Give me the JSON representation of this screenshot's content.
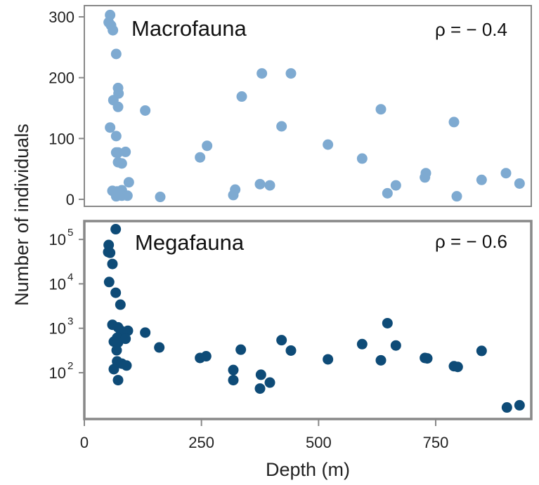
{
  "chart_data": [
    {
      "type": "scatter",
      "title": "Macrofauna",
      "annotation": "ρ = − 0.4",
      "ylabel": "Number of individuals",
      "xlabel": "Depth (m)",
      "xlim": [
        0,
        940
      ],
      "ylim": [
        0,
        310
      ],
      "yscale": "linear",
      "yticks": [
        0,
        100,
        200,
        300
      ],
      "ytick_labels": [
        "0",
        "100",
        "200",
        "300"
      ],
      "color": "#7eaad1",
      "series": [
        {
          "points": [
            [
              55,
              303
            ],
            [
              52,
              291
            ],
            [
              57,
              286
            ],
            [
              61,
              278
            ],
            [
              68,
              239
            ],
            [
              72,
              183
            ],
            [
              73,
              174
            ],
            [
              62,
              163
            ],
            [
              72,
              152
            ],
            [
              130,
              146
            ],
            [
              55,
              118
            ],
            [
              68,
              104
            ],
            [
              88,
              78
            ],
            [
              68,
              77
            ],
            [
              72,
              77
            ],
            [
              72,
              61
            ],
            [
              80,
              59
            ],
            [
              95,
              28
            ],
            [
              60,
              14
            ],
            [
              70,
              13
            ],
            [
              80,
              15
            ],
            [
              68,
              5
            ],
            [
              80,
              6
            ],
            [
              92,
              6
            ],
            [
              162,
              4
            ],
            [
              262,
              88
            ],
            [
              247,
              69
            ],
            [
              336,
              169
            ],
            [
              379,
              207
            ],
            [
              441,
              207
            ],
            [
              421,
              120
            ],
            [
              322,
              16
            ],
            [
              318,
              7
            ],
            [
              375,
              25
            ],
            [
              396,
              23
            ],
            [
              520,
              90
            ],
            [
              593,
              67
            ],
            [
              633,
              148
            ],
            [
              789,
              127
            ],
            [
              727,
              36
            ],
            [
              729,
              43
            ],
            [
              647,
              10
            ],
            [
              665,
              23
            ],
            [
              795,
              5
            ],
            [
              848,
              32
            ],
            [
              900,
              43
            ],
            [
              929,
              26
            ]
          ]
        }
      ]
    },
    {
      "type": "scatter",
      "title": "Megafauna",
      "annotation": "ρ = − 0.6",
      "ylabel": "Number of individuals",
      "xlabel": "Depth (m)",
      "xlim": [
        0,
        940
      ],
      "ylim": [
        10,
        200000
      ],
      "yscale": "log",
      "yticks": [
        100,
        1000,
        10000,
        100000
      ],
      "ytick_labels": [
        [
          "10",
          "2"
        ],
        [
          "10",
          "3"
        ],
        [
          "10",
          "4"
        ],
        [
          "10",
          "5"
        ]
      ],
      "xticks": [
        0,
        250,
        500,
        750
      ],
      "xtick_labels": [
        "0",
        "250",
        "500",
        "750"
      ],
      "color": "#0e4b77",
      "series": [
        {
          "points": [
            [
              67,
              170000
            ],
            [
              52,
              75000
            ],
            [
              51,
              52000
            ],
            [
              55,
              50000
            ],
            [
              60,
              28000
            ],
            [
              53,
              11000
            ],
            [
              67,
              6300
            ],
            [
              77,
              3400
            ],
            [
              60,
              1200
            ],
            [
              72,
              1050
            ],
            [
              78,
              880
            ],
            [
              93,
              880
            ],
            [
              130,
              800
            ],
            [
              70,
              610
            ],
            [
              88,
              580
            ],
            [
              63,
              500
            ],
            [
              72,
              480
            ],
            [
              69,
              320
            ],
            [
              160,
              370
            ],
            [
              70,
              180
            ],
            [
              80,
              160
            ],
            [
              90,
              145
            ],
            [
              63,
              120
            ],
            [
              72,
              68
            ],
            [
              247,
              215
            ],
            [
              260,
              235
            ],
            [
              334,
              330
            ],
            [
              318,
              115
            ],
            [
              318,
              68
            ],
            [
              377,
              90
            ],
            [
              375,
              44
            ],
            [
              396,
              60
            ],
            [
              421,
              540
            ],
            [
              441,
              315
            ],
            [
              520,
              200
            ],
            [
              593,
              440
            ],
            [
              633,
              190
            ],
            [
              647,
              1300
            ],
            [
              665,
              410
            ],
            [
              727,
              215
            ],
            [
              732,
              210
            ],
            [
              789,
              140
            ],
            [
              797,
              135
            ],
            [
              848,
              310
            ],
            [
              902,
              16.5
            ],
            [
              929,
              18.5
            ]
          ]
        }
      ]
    }
  ],
  "axes": {
    "ylabel": "Number of individuals",
    "xlabel": "Depth (m)"
  }
}
